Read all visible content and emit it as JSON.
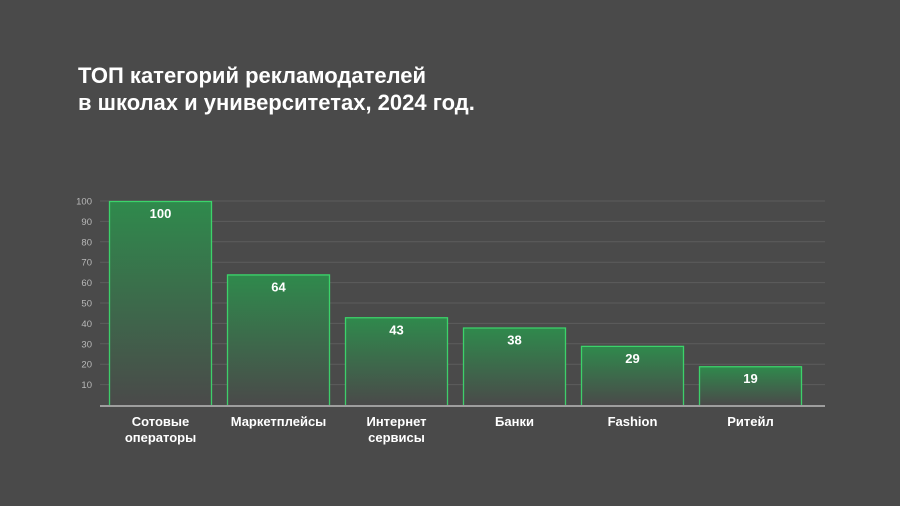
{
  "title_lines": [
    "ТОП категорий рекламодателей",
    "в школах и университетах, 2024 год."
  ],
  "colors": {
    "background": "#4a4a4a",
    "bar_border": "#3ddc6e",
    "bar_fill_top": "#2f8a4c",
    "bar_fill_bottom": "#4a4a4a",
    "grid": "#5c5c5c",
    "axis": "#d0d0d0",
    "text": "#ffffff",
    "tick_text": "#b9b9b9"
  },
  "chart_data": {
    "type": "bar",
    "title": "ТОП категорий рекламодателей в школах и университетах, 2024 год.",
    "categories": [
      [
        "Сотовые",
        "операторы"
      ],
      [
        "Маркетплейсы"
      ],
      [
        "Интернет",
        "сервисы"
      ],
      [
        "Банки"
      ],
      [
        "Fashion"
      ],
      [
        "Ритейл"
      ]
    ],
    "values": [
      100,
      64,
      43,
      38,
      29,
      19
    ],
    "value_labels": [
      "100",
      "64",
      "43",
      "38",
      "29",
      "19"
    ],
    "yticks": [
      10,
      20,
      30,
      40,
      50,
      60,
      70,
      80,
      90,
      100
    ],
    "ylim": [
      0,
      100
    ],
    "grid": true,
    "legend": "none",
    "xlabel": "",
    "ylabel": ""
  }
}
